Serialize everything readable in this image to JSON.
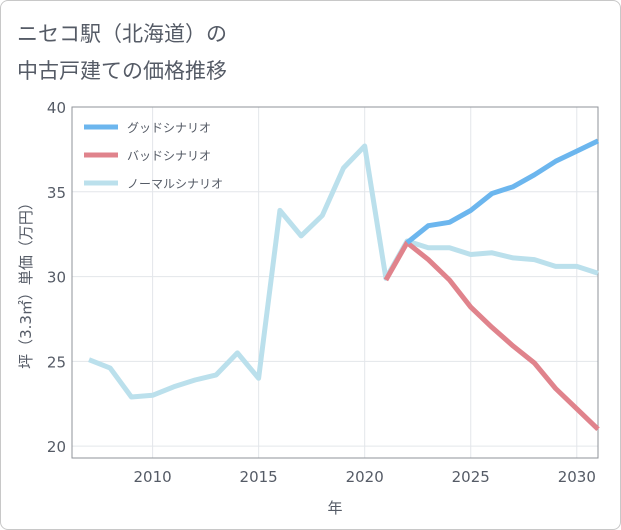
{
  "chart_data": {
    "type": "line",
    "title_lines": [
      "ニセコ駅（北海道）の",
      "中古戸建ての価格推移"
    ],
    "xlabel": "年",
    "ylabel": "坪（3.3㎡）単価（万円）",
    "xlim": [
      2006.2,
      2031
    ],
    "ylim": [
      19.3,
      40
    ],
    "xticks": [
      2010,
      2015,
      2020,
      2025,
      2030
    ],
    "yticks": [
      20,
      25,
      30,
      35,
      40
    ],
    "legend_position": "top-left",
    "series": [
      {
        "name": "グッドシナリオ",
        "color": "#6cb6ee",
        "x": [
          2022,
          2023,
          2024,
          2025,
          2026,
          2027,
          2028,
          2029,
          2030,
          2031
        ],
        "y": [
          32.0,
          33.0,
          33.2,
          33.9,
          34.9,
          35.3,
          36.0,
          36.8,
          37.4,
          38.0
        ]
      },
      {
        "name": "バッドシナリオ",
        "color": "#e0838c",
        "x": [
          2021,
          2022,
          2023,
          2024,
          2025,
          2026,
          2027,
          2028,
          2029,
          2030,
          2031
        ],
        "y": [
          29.8,
          32.0,
          31.0,
          29.8,
          28.2,
          27.0,
          25.9,
          24.9,
          23.4,
          22.2,
          21.0
        ]
      },
      {
        "name": "ノーマルシナリオ",
        "color": "#bbe0ec",
        "x": [
          2007,
          2008,
          2009,
          2010,
          2011,
          2012,
          2013,
          2014,
          2015,
          2016,
          2017,
          2018,
          2019,
          2020,
          2021,
          2022,
          2023,
          2024,
          2025,
          2026,
          2027,
          2028,
          2029,
          2030,
          2031
        ],
        "y": [
          25.1,
          24.6,
          22.9,
          23.0,
          23.5,
          23.9,
          24.2,
          25.5,
          24.0,
          33.9,
          32.4,
          33.6,
          36.4,
          37.7,
          29.9,
          32.1,
          31.7,
          31.7,
          31.3,
          31.4,
          31.1,
          31.0,
          30.6,
          30.6,
          30.2
        ]
      }
    ]
  }
}
